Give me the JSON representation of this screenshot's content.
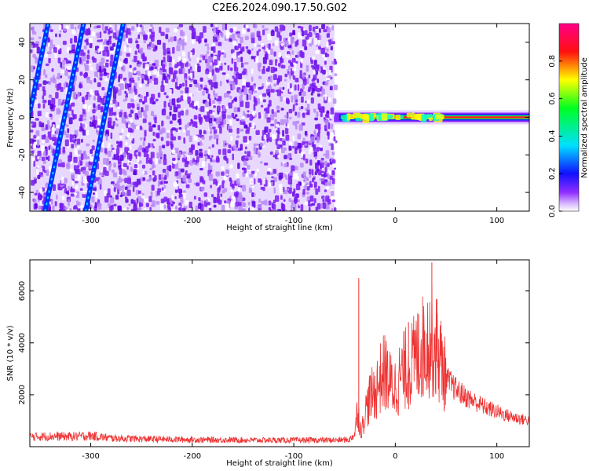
{
  "title": "C2E6.2024.090.17.50.G02",
  "colors": {
    "snr_line": "#ee3333",
    "axis": "#000000",
    "spectrogram_cmap": [
      "#ffffff",
      "#cc99ff",
      "#7f00ff",
      "#0000ff",
      "#00ffff",
      "#00ff00",
      "#ffff00",
      "#ff0000",
      "#ff0088"
    ]
  },
  "chart_data": [
    {
      "type": "heatmap",
      "xlabel": "Height of straight line (km)",
      "ylabel": "Frequency (Hz)",
      "xlim": [
        -360,
        132
      ],
      "ylim": [
        -50,
        50
      ],
      "xticks": [
        -300,
        -200,
        -100,
        0,
        100
      ],
      "xtick_labels": [
        "-300",
        "-200",
        "-100",
        "0",
        "100"
      ],
      "yticks": [
        -40,
        -20,
        0,
        20,
        40
      ],
      "ytick_labels": [
        "-40",
        "-20",
        "0",
        "20",
        "40"
      ],
      "noise_region": {
        "x_start": -360,
        "x_end": -60
      },
      "signal_band": {
        "x_start": -60,
        "x_end": 132,
        "center_hz": 0
      },
      "doppler_tracks": [
        {
          "x_at_bottom": -345,
          "x_at_top": -307
        },
        {
          "x_at_bottom": -305,
          "x_at_top": -268
        },
        {
          "x_at_bottom": -380,
          "x_at_top": -342
        }
      ],
      "colorbar": {
        "label": "Normalized spectral amplitude",
        "range": [
          0,
          1
        ],
        "ticks": [
          0.0,
          0.2,
          0.4,
          0.6,
          0.8
        ],
        "tick_labels": [
          "0.0",
          "0.2",
          "0.4",
          "0.6",
          "0.8"
        ]
      }
    },
    {
      "type": "line",
      "xlabel": "Height of straight line (km)",
      "ylabel": "SNR (10 * v/v)",
      "xlim": [
        -360,
        132
      ],
      "ylim": [
        0,
        7200
      ],
      "xticks": [
        -300,
        -200,
        -100,
        0,
        100
      ],
      "xtick_labels": [
        "-300",
        "-200",
        "-100",
        "0",
        "100"
      ],
      "yticks": [
        2000,
        4000,
        6000
      ],
      "ytick_labels": [
        "2000",
        "4000",
        "6000"
      ],
      "series": [
        {
          "x": [
            -360,
            -340,
            -320,
            -300,
            -280,
            -260,
            -240,
            -220,
            -200,
            -180,
            -160,
            -140,
            -120,
            -100,
            -80,
            -60,
            -45,
            -40,
            -37,
            -35,
            -33,
            -30,
            -25,
            -20,
            -15,
            -10,
            -5,
            0,
            5,
            10,
            15,
            20,
            25,
            30,
            35,
            40,
            45,
            50,
            60,
            70,
            80,
            90,
            100,
            110,
            120,
            132
          ],
          "y": [
            380,
            400,
            390,
            420,
            330,
            310,
            290,
            280,
            270,
            260,
            260,
            250,
            250,
            250,
            250,
            250,
            270,
            500,
            1500,
            800,
            600,
            1300,
            1900,
            2100,
            2600,
            2900,
            2400,
            2300,
            2700,
            3000,
            3100,
            3400,
            3700,
            4000,
            4100,
            3800,
            3300,
            2600,
            2200,
            1900,
            1700,
            1500,
            1350,
            1200,
            1100,
            1000
          ],
          "spikes": [
            {
              "x": -36,
              "y": 6500
            },
            {
              "x": 13,
              "y": 4800
            },
            {
              "x": 23,
              "y": 5100
            },
            {
              "x": 36,
              "y": 7100
            },
            {
              "x": 41,
              "y": 5700
            }
          ]
        }
      ]
    }
  ]
}
